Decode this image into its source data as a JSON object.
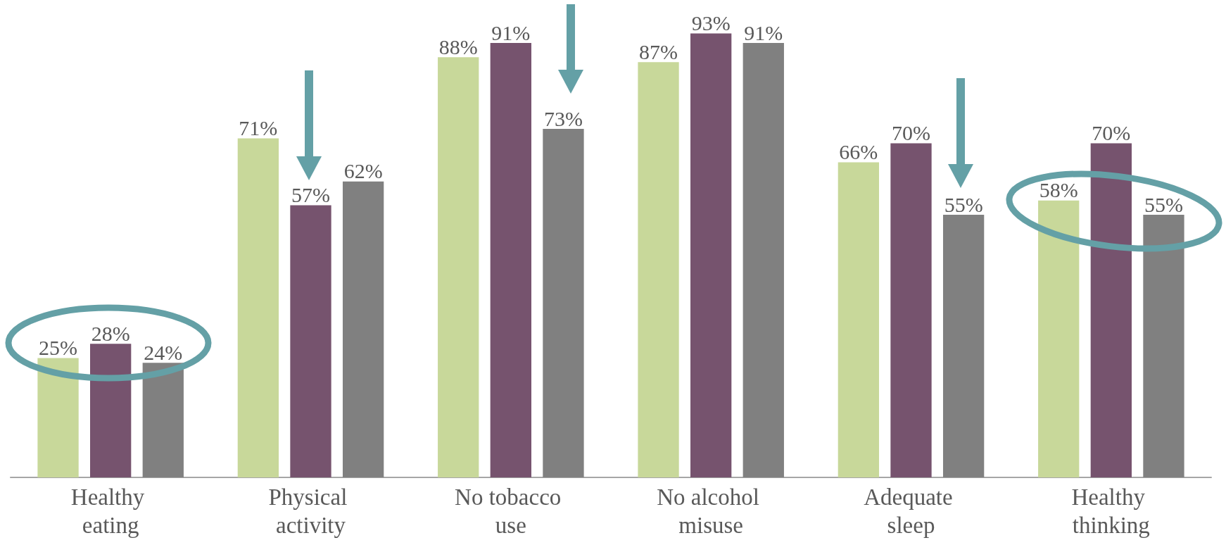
{
  "chart_data": {
    "type": "bar",
    "categories": [
      "Healthy eating",
      "Physical activity",
      "No tobacco use",
      "No alcohol misuse",
      "Adequate sleep",
      "Healthy thinking"
    ],
    "series": [
      {
        "color": "#c8d89a",
        "values": [
          25,
          71,
          88,
          87,
          66,
          58
        ],
        "value_labels": [
          "25%",
          "71%",
          "88%",
          "87%",
          "66%",
          "58%"
        ]
      },
      {
        "color": "#76536e",
        "values": [
          28,
          57,
          91,
          93,
          70,
          70
        ],
        "value_labels": [
          "28%",
          "57%",
          "91%",
          "93%",
          "70%",
          "70%"
        ]
      },
      {
        "color": "#808080",
        "values": [
          24,
          62,
          73,
          91,
          55,
          55
        ],
        "value_labels": [
          "24%",
          "62%",
          "73%",
          "91%",
          "55%",
          "55%"
        ]
      }
    ]
  }
}
